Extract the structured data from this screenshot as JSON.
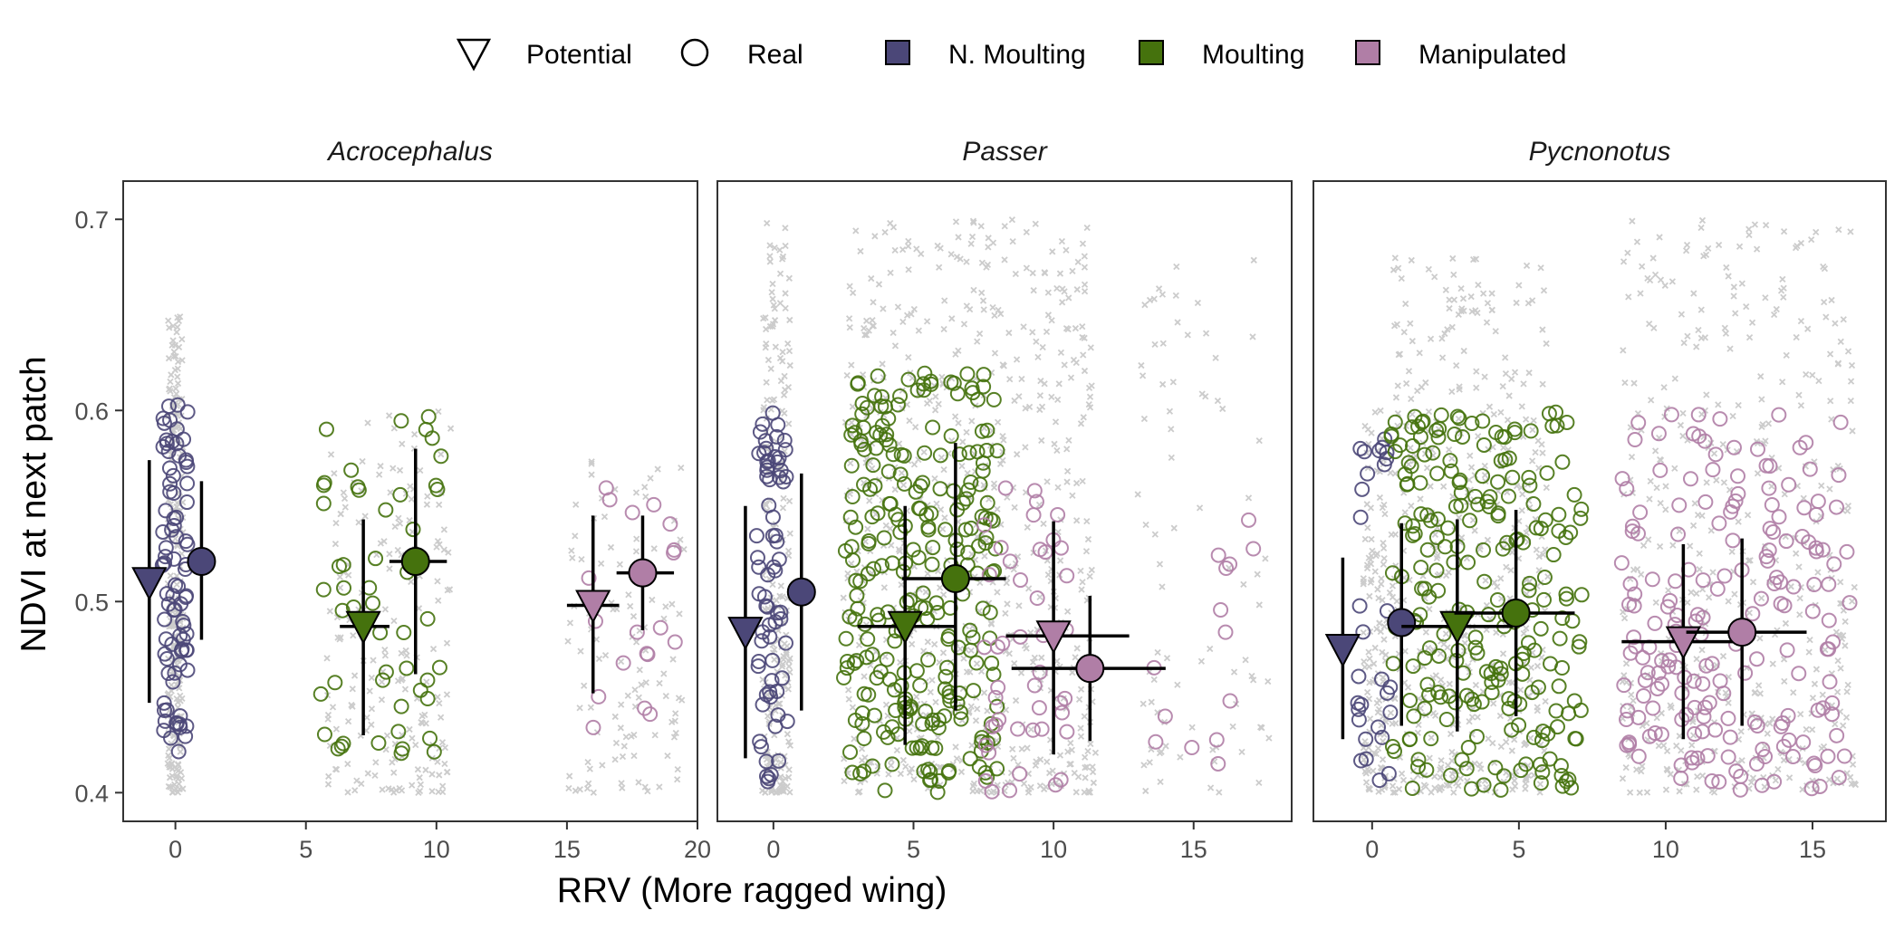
{
  "legend": {
    "shape_items": [
      {
        "label": "Potential",
        "shape": "triangle-down-icon"
      },
      {
        "label": "Real",
        "shape": "circle-icon"
      }
    ],
    "color_items": [
      {
        "label": "N. Moulting",
        "color": "#4b4778"
      },
      {
        "label": "Moulting",
        "color": "#45720d"
      },
      {
        "label": "Manipulated",
        "color": "#b07ea6"
      }
    ]
  },
  "chart_data": {
    "type": "scatter",
    "xlabel": "RRV (More ragged wing)",
    "ylabel": "NDVI at next patch",
    "ylim": [
      0.385,
      0.72
    ],
    "yticks": [
      0.4,
      0.5,
      0.6,
      0.7
    ],
    "ytick_labels": [
      "0.4",
      "0.5",
      "0.6",
      "0.7"
    ],
    "colors": {
      "N. Moulting": "#4b4778",
      "Moulting": "#45720d",
      "Manipulated": "#b07ea6",
      "background": "#cccccc"
    },
    "panels": [
      {
        "title": "Acrocephalus",
        "xlim": [
          -2,
          20
        ],
        "xticks": [
          0,
          5,
          10,
          15,
          20
        ],
        "xtick_labels": [
          "0",
          "5",
          "10",
          "15",
          "20"
        ],
        "summaries": [
          {
            "group": "N. Moulting",
            "type": "Potential",
            "x": -1.0,
            "y": 0.51,
            "ylo": 0.447,
            "yhi": 0.574
          },
          {
            "group": "N. Moulting",
            "type": "Real",
            "x": 1.0,
            "y": 0.521,
            "ylo": 0.48,
            "yhi": 0.563
          },
          {
            "group": "Moulting",
            "type": "Potential",
            "x": 7.2,
            "y": 0.487,
            "xlo": 6.3,
            "xhi": 8.2,
            "ylo": 0.43,
            "yhi": 0.543
          },
          {
            "group": "Moulting",
            "type": "Real",
            "x": 9.2,
            "y": 0.521,
            "xlo": 8.2,
            "xhi": 10.4,
            "ylo": 0.462,
            "yhi": 0.58
          },
          {
            "group": "Manipulated",
            "type": "Potential",
            "x": 16.0,
            "y": 0.498,
            "xlo": 15.0,
            "xhi": 17.0,
            "ylo": 0.452,
            "yhi": 0.545
          },
          {
            "group": "Manipulated",
            "type": "Real",
            "x": 17.9,
            "y": 0.515,
            "xlo": 16.9,
            "xhi": 19.1,
            "ylo": 0.485,
            "yhi": 0.545
          }
        ],
        "clouds": [
          {
            "group": "N. Moulting",
            "xmin": -0.5,
            "xmax": 0.5,
            "ymin": 0.42,
            "ymax": 0.61,
            "n": 85
          },
          {
            "group": "Moulting",
            "xmin": 5.5,
            "xmax": 10.5,
            "ymin": 0.42,
            "ymax": 0.6,
            "n": 50
          },
          {
            "group": "Manipulated",
            "xmin": 15.5,
            "xmax": 19.2,
            "ymin": 0.43,
            "ymax": 0.56,
            "n": 20
          }
        ],
        "background": [
          {
            "xmin": -0.3,
            "xmax": 0.3,
            "ymin": 0.4,
            "ymax": 0.65,
            "n": 220
          },
          {
            "xmin": 5.8,
            "xmax": 10.6,
            "ymin": 0.4,
            "ymax": 0.6,
            "n": 180
          },
          {
            "xmin": 15.0,
            "xmax": 19.5,
            "ymin": 0.4,
            "ymax": 0.58,
            "n": 110
          }
        ]
      },
      {
        "title": "Passer",
        "xlim": [
          -2,
          18.5
        ],
        "xticks": [
          0,
          5,
          10,
          15
        ],
        "xtick_labels": [
          "0",
          "5",
          "10",
          "15"
        ],
        "summaries": [
          {
            "group": "N. Moulting",
            "type": "Potential",
            "x": -1.0,
            "y": 0.484,
            "ylo": 0.418,
            "yhi": 0.55
          },
          {
            "group": "N. Moulting",
            "type": "Real",
            "x": 1.0,
            "y": 0.505,
            "ylo": 0.443,
            "yhi": 0.567
          },
          {
            "group": "Moulting",
            "type": "Potential",
            "x": 4.7,
            "y": 0.487,
            "xlo": 3.0,
            "xhi": 6.5,
            "ylo": 0.425,
            "yhi": 0.55
          },
          {
            "group": "Moulting",
            "type": "Real",
            "x": 6.5,
            "y": 0.512,
            "xlo": 4.6,
            "xhi": 8.3,
            "ylo": 0.443,
            "yhi": 0.583
          },
          {
            "group": "Manipulated",
            "type": "Potential",
            "x": 10.0,
            "y": 0.482,
            "xlo": 8.3,
            "xhi": 12.7,
            "ylo": 0.42,
            "yhi": 0.542
          },
          {
            "group": "Manipulated",
            "type": "Real",
            "x": 11.3,
            "y": 0.465,
            "xlo": 8.5,
            "xhi": 14.0,
            "ylo": 0.427,
            "yhi": 0.503
          }
        ],
        "clouds": [
          {
            "group": "N. Moulting",
            "xmin": -0.6,
            "xmax": 0.5,
            "ymin": 0.4,
            "ymax": 0.6,
            "n": 70
          },
          {
            "group": "Moulting",
            "xmin": 2.5,
            "xmax": 8.0,
            "ymin": 0.4,
            "ymax": 0.62,
            "n": 260
          },
          {
            "group": "Manipulated",
            "xmin": 7.5,
            "xmax": 10.5,
            "ymin": 0.4,
            "ymax": 0.56,
            "n": 45
          },
          {
            "group": "Manipulated",
            "xmin": 13.5,
            "xmax": 17.5,
            "ymin": 0.405,
            "ymax": 0.55,
            "n": 14
          }
        ],
        "background": [
          {
            "xmin": -0.4,
            "xmax": 0.6,
            "ymin": 0.4,
            "ymax": 0.7,
            "n": 200
          },
          {
            "xmin": 2.5,
            "xmax": 11.5,
            "ymin": 0.4,
            "ymax": 0.7,
            "n": 650
          },
          {
            "xmin": 13.0,
            "xmax": 17.8,
            "ymin": 0.4,
            "ymax": 0.68,
            "n": 80
          }
        ]
      },
      {
        "title": "Pycnonotus",
        "xlim": [
          -2,
          17.5
        ],
        "xticks": [
          0,
          5,
          10,
          15
        ],
        "xtick_labels": [
          "0",
          "5",
          "10",
          "15"
        ],
        "summaries": [
          {
            "group": "N. Moulting",
            "type": "Potential",
            "x": -1.0,
            "y": 0.475,
            "ylo": 0.428,
            "yhi": 0.523
          },
          {
            "group": "N. Moulting",
            "type": "Real",
            "x": 1.0,
            "y": 0.489,
            "ylo": 0.435,
            "yhi": 0.541
          },
          {
            "group": "Moulting",
            "type": "Potential",
            "x": 2.9,
            "y": 0.487,
            "xlo": 1.0,
            "xhi": 4.8,
            "ylo": 0.432,
            "yhi": 0.543
          },
          {
            "group": "Moulting",
            "type": "Real",
            "x": 4.9,
            "y": 0.494,
            "xlo": 2.8,
            "xhi": 6.9,
            "ylo": 0.44,
            "yhi": 0.548
          },
          {
            "group": "Manipulated",
            "type": "Potential",
            "x": 10.6,
            "y": 0.479,
            "xlo": 8.5,
            "xhi": 12.5,
            "ylo": 0.428,
            "yhi": 0.53
          },
          {
            "group": "Manipulated",
            "type": "Real",
            "x": 12.6,
            "y": 0.484,
            "xlo": 10.7,
            "xhi": 14.8,
            "ylo": 0.435,
            "yhi": 0.533
          }
        ],
        "clouds": [
          {
            "group": "N. Moulting",
            "xmin": -0.5,
            "xmax": 0.7,
            "ymin": 0.405,
            "ymax": 0.59,
            "n": 30
          },
          {
            "group": "Moulting",
            "xmin": 0.6,
            "xmax": 7.2,
            "ymin": 0.4,
            "ymax": 0.6,
            "n": 230
          },
          {
            "group": "Manipulated",
            "xmin": 8.5,
            "xmax": 16.3,
            "ymin": 0.4,
            "ymax": 0.6,
            "n": 190
          }
        ],
        "background": [
          {
            "xmin": -0.3,
            "xmax": 0.5,
            "ymin": 0.4,
            "ymax": 0.6,
            "n": 120
          },
          {
            "xmin": 0.6,
            "xmax": 6.0,
            "ymin": 0.4,
            "ymax": 0.68,
            "n": 450
          },
          {
            "xmin": 8.5,
            "xmax": 16.5,
            "ymin": 0.4,
            "ymax": 0.7,
            "n": 420
          }
        ]
      }
    ]
  }
}
